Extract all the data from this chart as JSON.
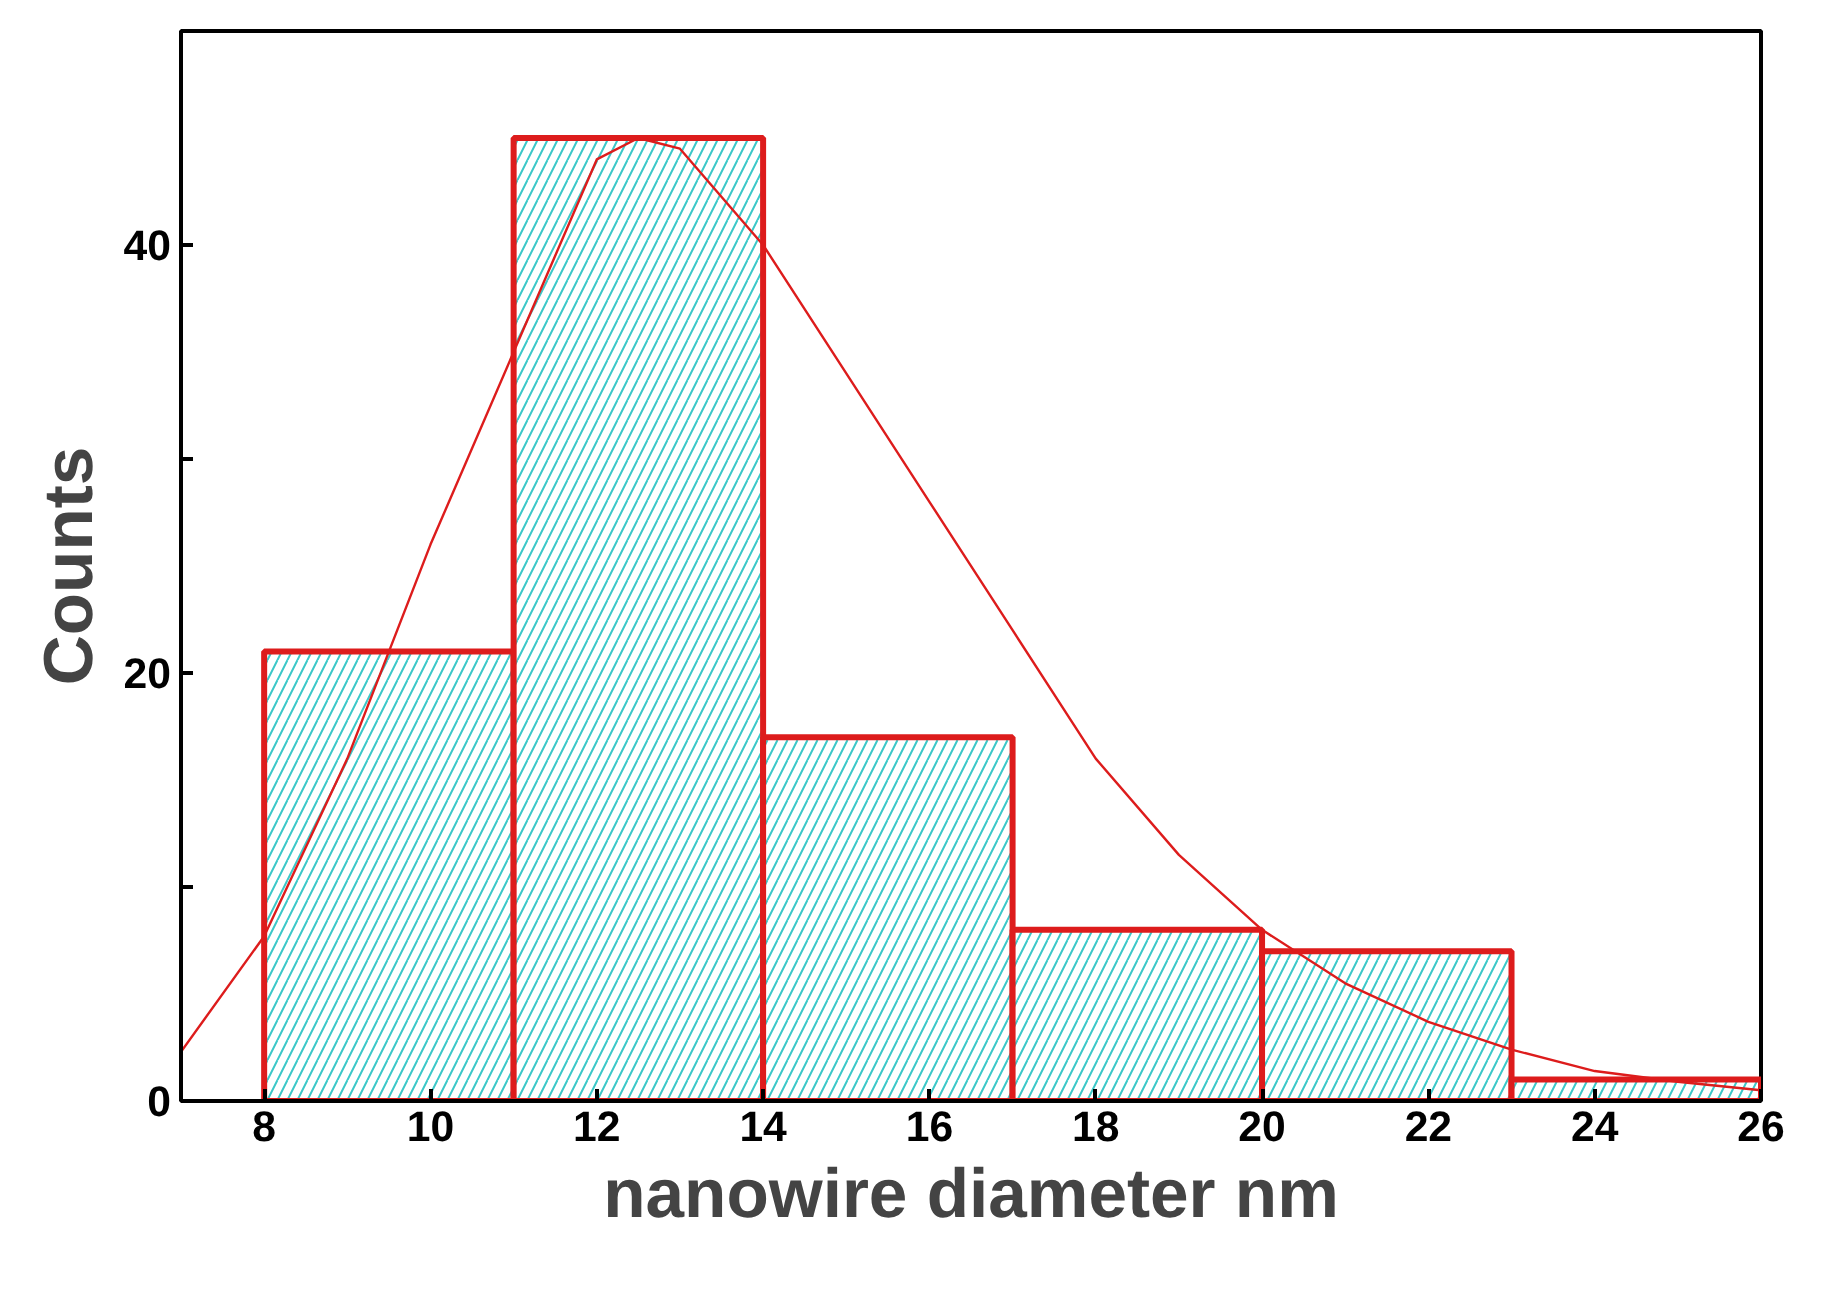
{
  "chart_data": {
    "type": "histogram",
    "xlabel": "nanowire diameter nm",
    "ylabel": "Counts",
    "xlim": [
      7,
      26
    ],
    "ylim": [
      0,
      50
    ],
    "xticks": [
      8,
      10,
      12,
      14,
      16,
      18,
      20,
      22,
      24,
      26
    ],
    "yticks": [
      0,
      {
        "value": 10,
        "label": null
      },
      20,
      {
        "value": 30,
        "label": null
      },
      40
    ],
    "grid": false,
    "series": [
      {
        "color": "#dd1c1c",
        "bins": [
          8,
          11,
          14,
          17,
          20,
          23,
          26
        ],
        "values": [
          21,
          45,
          17,
          8,
          7,
          1
        ]
      },
      {
        "type": "line",
        "color": "#dd1c1c",
        "x": [
          7,
          8,
          9,
          10,
          11,
          12,
          12.5,
          13,
          14,
          15,
          16,
          17,
          18,
          19,
          20,
          21,
          22,
          23,
          24,
          25,
          26
        ],
        "values": [
          2.3,
          7.7,
          16,
          26,
          35,
          44,
          45,
          44.5,
          40,
          34,
          28,
          22,
          16,
          11.5,
          8,
          5.5,
          3.7,
          2.4,
          1.4,
          0.9,
          0.5
        ]
      }
    ]
  }
}
